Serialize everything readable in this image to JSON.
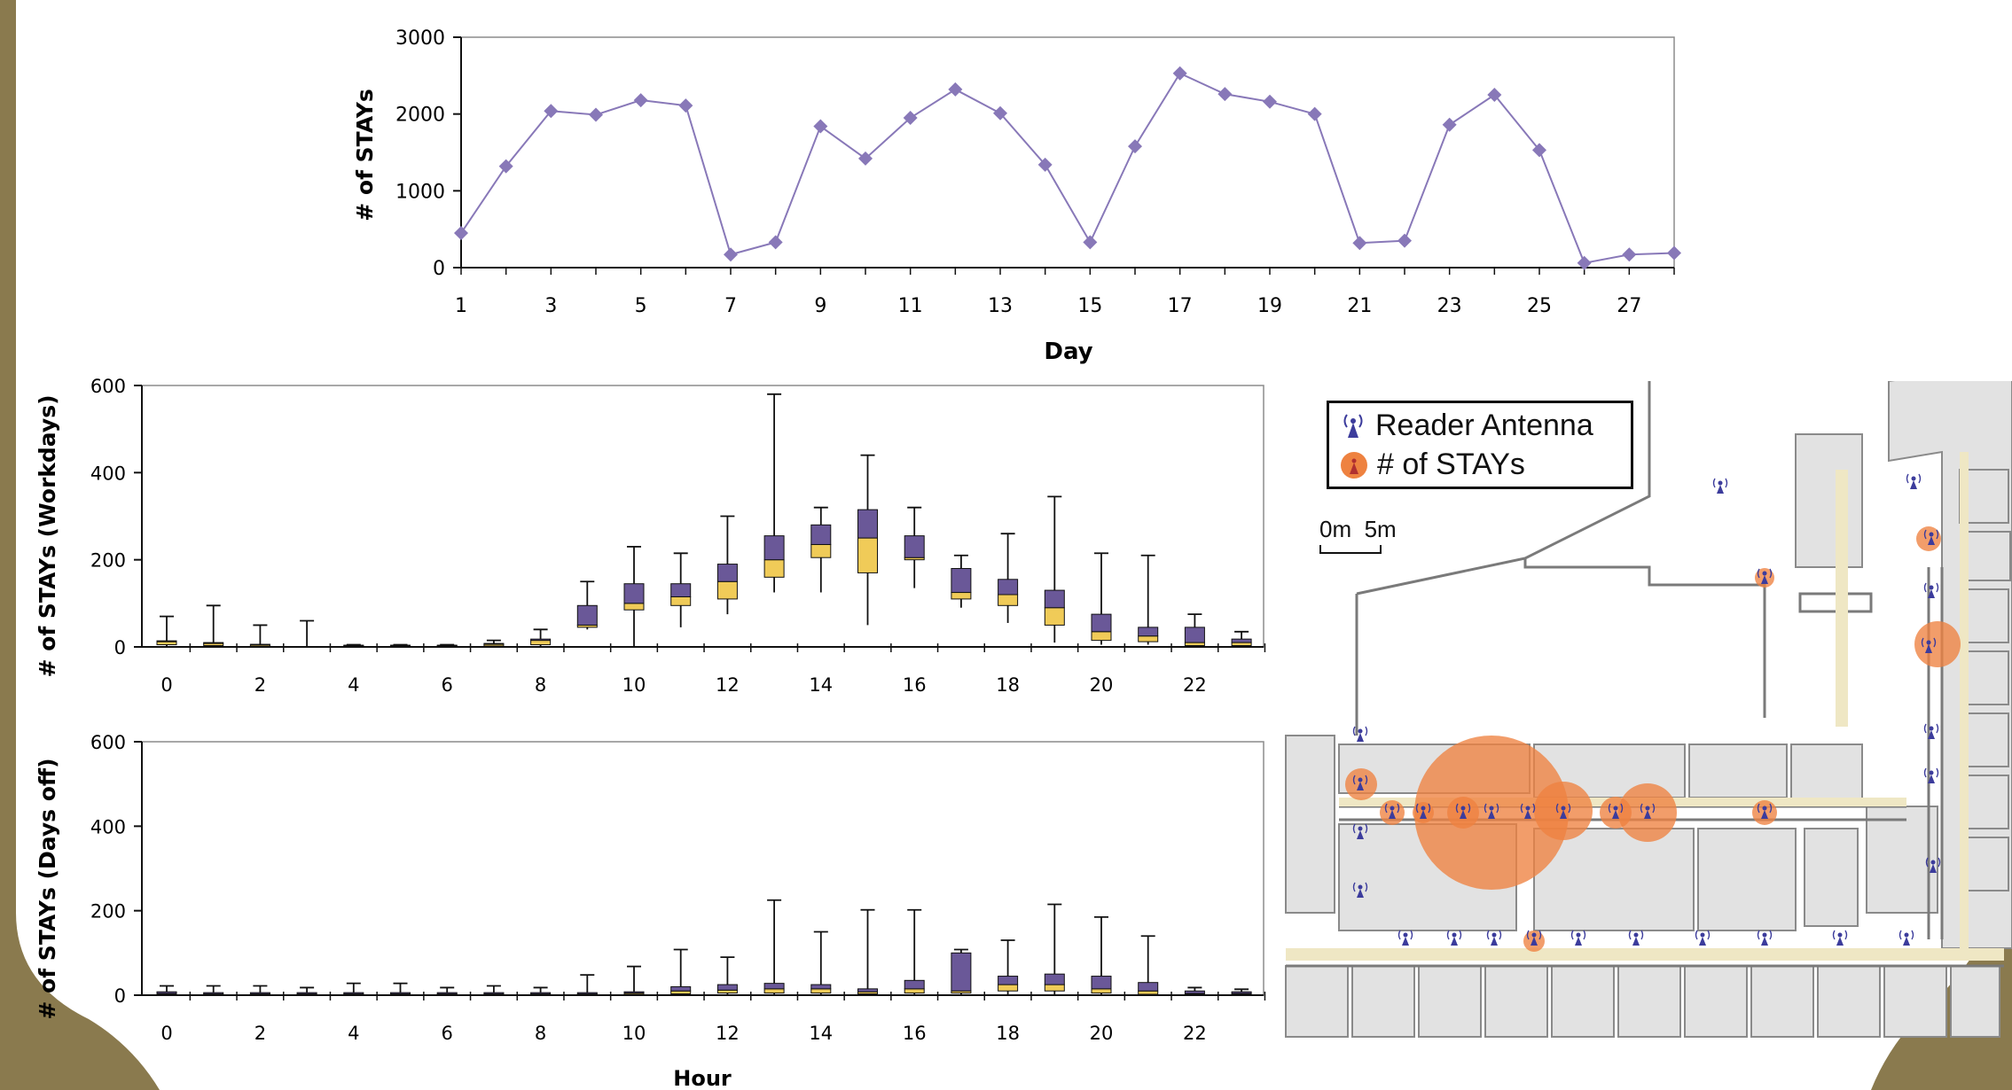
{
  "colors": {
    "frame_olive": "#8a7a4e",
    "line_purple": "#8878b8",
    "box_purple": "#6a5898",
    "box_gold": "#f0cb58",
    "orange": "#ee8240"
  },
  "chart_data": [
    {
      "type": "line",
      "xlabel": "Day",
      "ylabel": "# of STAYs",
      "ylim": [
        0,
        3000
      ],
      "yticks": [
        "0",
        "1000",
        "2000",
        "3000"
      ],
      "xticks": [
        "1",
        "3",
        "5",
        "7",
        "9",
        "11",
        "13",
        "15",
        "17",
        "19",
        "21",
        "23",
        "25",
        "27"
      ],
      "x": [
        1,
        2,
        3,
        4,
        5,
        6,
        7,
        8,
        9,
        10,
        11,
        12,
        13,
        14,
        15,
        16,
        17,
        18,
        19,
        20,
        21,
        22,
        23,
        24,
        25,
        26,
        27,
        28
      ],
      "values": [
        450,
        1320,
        2040,
        1990,
        2180,
        2110,
        170,
        330,
        1840,
        1420,
        1950,
        2320,
        2010,
        1340,
        330,
        1580,
        2530,
        2260,
        2160,
        2000,
        320,
        350,
        1860,
        2250,
        1530,
        60,
        170,
        190
      ]
    },
    {
      "type": "box",
      "xlabel": "",
      "ylabel": "# of STAYs (Workdays)",
      "ylim": [
        0,
        600
      ],
      "yticks": [
        "0",
        "200",
        "400",
        "600"
      ],
      "xticks": [
        "0",
        "2",
        "4",
        "6",
        "8",
        "10",
        "12",
        "14",
        "16",
        "18",
        "20",
        "22"
      ],
      "hours": [
        0,
        1,
        2,
        3,
        4,
        5,
        6,
        7,
        8,
        9,
        10,
        11,
        12,
        13,
        14,
        15,
        16,
        17,
        18,
        19,
        20,
        21,
        22,
        23
      ],
      "q1": [
        5,
        3,
        1,
        0,
        1,
        1,
        1,
        2,
        5,
        45,
        85,
        95,
        110,
        160,
        205,
        170,
        200,
        110,
        95,
        50,
        15,
        12,
        3,
        3
      ],
      "median": [
        12,
        8,
        4,
        0,
        3,
        3,
        3,
        6,
        15,
        50,
        100,
        115,
        150,
        200,
        235,
        250,
        205,
        125,
        120,
        90,
        35,
        25,
        10,
        10
      ],
      "q3": [
        14,
        10,
        6,
        0,
        4,
        4,
        4,
        8,
        18,
        95,
        145,
        145,
        190,
        255,
        280,
        315,
        255,
        180,
        155,
        130,
        75,
        45,
        45,
        18
      ],
      "whisker_low": [
        0,
        0,
        0,
        0,
        0,
        0,
        0,
        0,
        0,
        40,
        0,
        45,
        75,
        125,
        125,
        50,
        135,
        90,
        55,
        10,
        5,
        5,
        0,
        0
      ],
      "whisker_high": [
        70,
        95,
        50,
        60,
        5,
        5,
        5,
        15,
        40,
        150,
        230,
        215,
        300,
        580,
        320,
        440,
        320,
        210,
        260,
        345,
        215,
        210,
        75,
        35
      ]
    },
    {
      "type": "box",
      "xlabel": "Hour",
      "ylabel": "# of STAYs (Days off)",
      "ylim": [
        0,
        600
      ],
      "yticks": [
        "0",
        "200",
        "400",
        "600"
      ],
      "xticks": [
        "0",
        "2",
        "4",
        "6",
        "8",
        "10",
        "12",
        "14",
        "16",
        "18",
        "20",
        "22"
      ],
      "hours": [
        0,
        1,
        2,
        3,
        4,
        5,
        6,
        7,
        8,
        9,
        10,
        11,
        12,
        13,
        14,
        15,
        16,
        17,
        18,
        19,
        20,
        21,
        22,
        23
      ],
      "q1": [
        2,
        1,
        1,
        1,
        1,
        1,
        1,
        1,
        1,
        1,
        2,
        3,
        5,
        5,
        5,
        3,
        5,
        5,
        10,
        10,
        5,
        2,
        2,
        2
      ],
      "median": [
        4,
        3,
        3,
        3,
        3,
        3,
        3,
        3,
        3,
        3,
        5,
        10,
        12,
        15,
        15,
        8,
        15,
        10,
        25,
        25,
        15,
        10,
        4,
        4
      ],
      "q3": [
        8,
        6,
        6,
        6,
        6,
        6,
        6,
        6,
        6,
        6,
        8,
        20,
        25,
        28,
        25,
        15,
        35,
        100,
        45,
        50,
        45,
        30,
        10,
        8
      ],
      "whisker_low": [
        0,
        0,
        0,
        0,
        0,
        0,
        0,
        0,
        0,
        0,
        0,
        0,
        0,
        0,
        0,
        0,
        0,
        0,
        0,
        0,
        0,
        0,
        0,
        0
      ],
      "whisker_high": [
        22,
        22,
        22,
        18,
        28,
        28,
        18,
        22,
        18,
        48,
        68,
        108,
        90,
        225,
        150,
        202,
        202,
        108,
        130,
        215,
        185,
        140,
        18,
        14
      ]
    }
  ],
  "floorplan": {
    "legend": {
      "antenna_label": "Reader Antenna",
      "stays_label": "# of STAYs",
      "antenna_icon": "antenna-icon",
      "stays_icon": "stays-bubble-icon"
    },
    "scale_bar": {
      "label": "0m  5m"
    }
  }
}
